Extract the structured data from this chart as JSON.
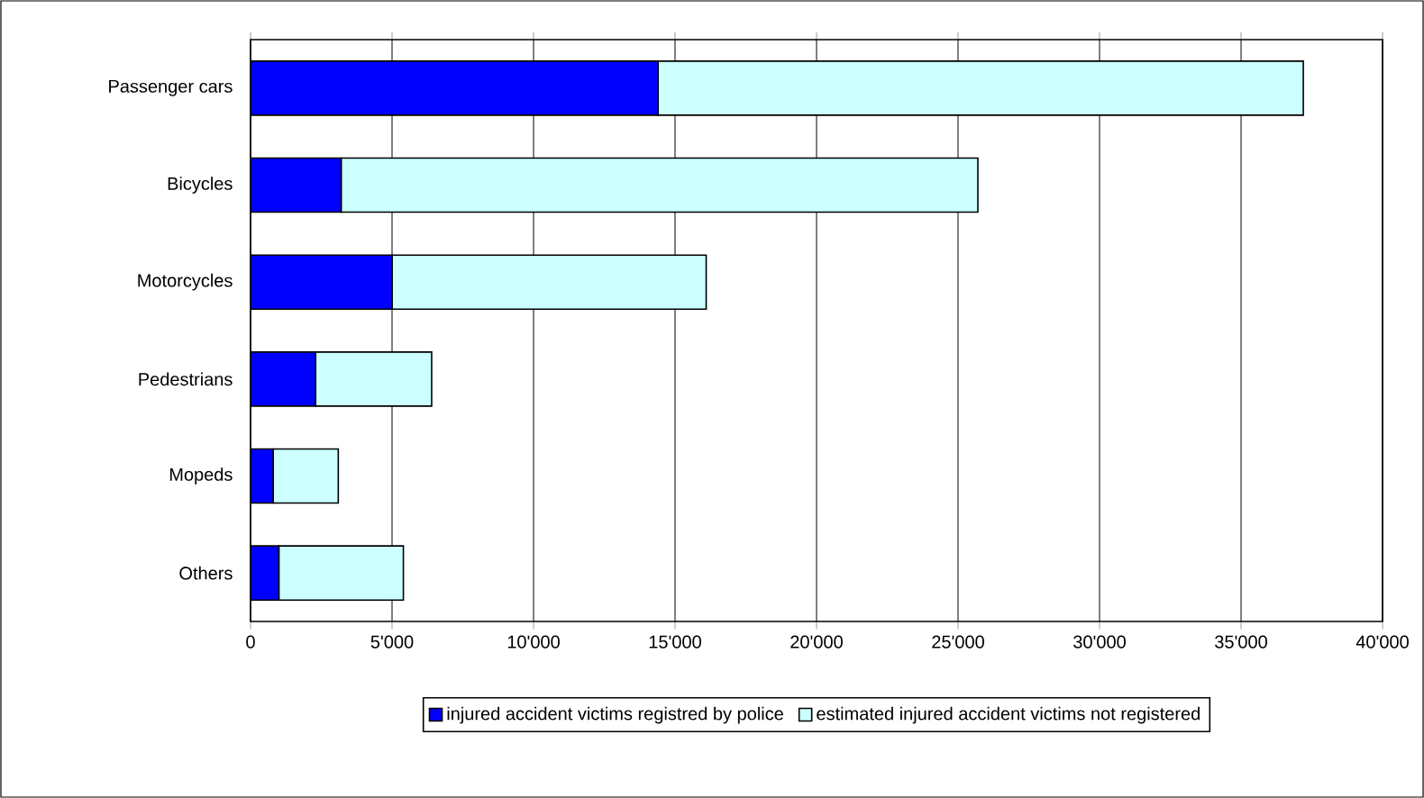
{
  "chart_data": {
    "type": "bar",
    "orientation": "horizontal",
    "stacked": true,
    "categories": [
      "Passenger cars",
      "Bicycles",
      "Motorcycles",
      "Pedestrians",
      "Mopeds",
      "Others"
    ],
    "series": [
      {
        "name": "injured accident victims registred by police",
        "color": "#0000ff",
        "values": [
          14400,
          3200,
          5000,
          2300,
          800,
          1000
        ]
      },
      {
        "name": "estimated injured accident victims not registered",
        "color": "#ccffff",
        "values": [
          22800,
          22500,
          11100,
          4100,
          2300,
          4400
        ]
      }
    ],
    "xlim": [
      0,
      40000
    ],
    "xticks": [
      0,
      {
        "value": 5000,
        "label": "5'000"
      },
      {
        "value": 10000,
        "label": "10'000"
      },
      {
        "value": 15000,
        "label": "15'000"
      },
      {
        "value": 20000,
        "label": "20'000"
      },
      {
        "value": 25000,
        "label": "25'000"
      },
      {
        "value": 30000,
        "label": "30'000"
      },
      {
        "value": 35000,
        "label": "35'000"
      },
      {
        "value": 40000,
        "label": "40'000"
      }
    ],
    "grid": "x",
    "legend": "bottom"
  }
}
